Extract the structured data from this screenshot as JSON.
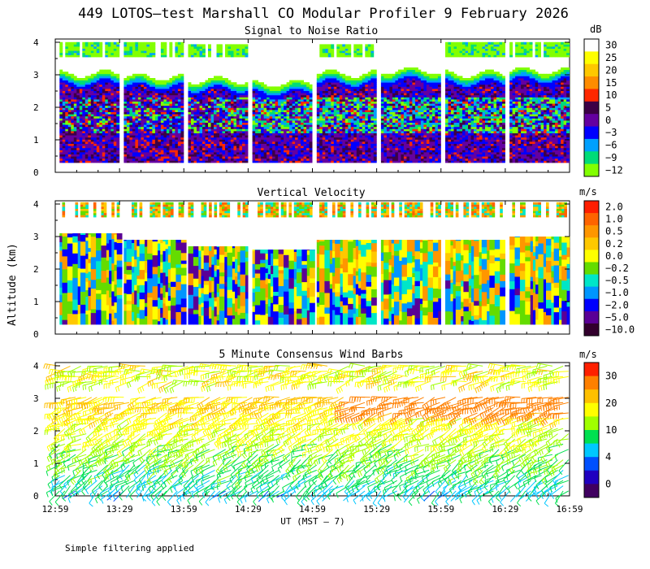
{
  "chart_data": {
    "title": "449 LOTOS–test Marshall CO Modular Profiler  9 February 2026",
    "xlabel": "UT  (MST – 7)",
    "ylabel": "Altitude (km)",
    "x_ticks": [
      "12:59",
      "13:29",
      "13:59",
      "14:29",
      "14:59",
      "15:29",
      "15:59",
      "16:29",
      "16:59"
    ],
    "y_ticks": [
      "0",
      "1",
      "2",
      "3",
      "4"
    ],
    "footnote": "Simple filtering applied",
    "panels": [
      {
        "type": "heatmap",
        "title": "Signal to Noise Ratio",
        "unit": "dB",
        "xlim": [
          "12:59",
          "16:59"
        ],
        "ylim": [
          0,
          4.1
        ],
        "colorbar": {
          "labels": [
            "30",
            "25",
            "20",
            "15",
            "10",
            "5",
            "0",
            "−3",
            "−6",
            "−9",
            "−12"
          ],
          "colors": [
            "#ffffff",
            "#ffff00",
            "#ffc800",
            "#ff8c00",
            "#ff2800",
            "#3c0046",
            "#6400a0",
            "#0000ff",
            "#00a0ff",
            "#00dc78",
            "#82ff00"
          ]
        },
        "series": [
          {
            "name": "segments",
            "values": [
              {
                "t0": "13:01",
                "t1": "13:28",
                "top": 3.0,
                "upper_top": 4.0
              },
              {
                "t0": "13:31",
                "t1": "13:58",
                "top": 2.9,
                "upper_top": 4.0
              },
              {
                "t0": "14:01",
                "t1": "14:28",
                "top": 2.8,
                "upper_top": 3.9
              },
              {
                "t0": "14:31",
                "t1": "14:58",
                "top": 2.7,
                "upper_top": null
              },
              {
                "t0": "15:01",
                "t1": "15:28",
                "top": 3.0,
                "upper_top": 3.9
              },
              {
                "t0": "15:31",
                "t1": "15:58",
                "top": 3.1,
                "upper_top": null
              },
              {
                "t0": "16:01",
                "t1": "16:28",
                "top": 3.0,
                "upper_top": 4.0
              },
              {
                "t0": "16:31",
                "t1": "16:58",
                "top": 3.1,
                "upper_top": 4.0
              }
            ]
          }
        ]
      },
      {
        "type": "heatmap",
        "title": "Vertical Velocity",
        "unit": "m/s",
        "xlim": [
          "12:59",
          "16:59"
        ],
        "ylim": [
          0,
          4.1
        ],
        "colorbar": {
          "labels": [
            "2.0",
            "1.0",
            "0.5",
            "0.2",
            "0.0",
            "−0.2",
            "−0.5",
            "−1.0",
            "−2.0",
            "−5.0",
            "−10.0"
          ],
          "colors": [
            "#ff1e00",
            "#ff6400",
            "#ff9600",
            "#ffc800",
            "#ffff00",
            "#64dc00",
            "#00e6c8",
            "#0096ff",
            "#0000ff",
            "#5a0096",
            "#32002d"
          ]
        },
        "series": [
          {
            "name": "segments",
            "values": [
              {
                "t0": "13:01",
                "t1": "13:28",
                "top": 3.1
              },
              {
                "t0": "13:31",
                "t1": "13:58",
                "top": 2.9
              },
              {
                "t0": "14:01",
                "t1": "14:28",
                "top": 2.7
              },
              {
                "t0": "14:31",
                "t1": "14:58",
                "top": 2.6
              },
              {
                "t0": "15:01",
                "t1": "15:28",
                "top": 2.9
              },
              {
                "t0": "15:31",
                "t1": "15:58",
                "top": 2.9
              },
              {
                "t0": "16:01",
                "t1": "16:28",
                "top": 2.9
              },
              {
                "t0": "16:31",
                "t1": "16:58",
                "top": 3.0
              }
            ]
          }
        ]
      },
      {
        "type": "wind barbs",
        "title": "5 Minute Consensus Wind Barbs",
        "unit": "m/s",
        "xlim": [
          "12:59",
          "16:59"
        ],
        "ylim": [
          0,
          4.1
        ],
        "colorbar": {
          "labels": [
            "30",
            "20",
            "10",
            "4",
            "0"
          ],
          "colors": [
            "#ff2000",
            "#ff8000",
            "#ffc000",
            "#ffff00",
            "#a0ff00",
            "#00e050",
            "#00c8ff",
            "#0050ff",
            "#2000c0",
            "#400060"
          ]
        }
      }
    ]
  }
}
